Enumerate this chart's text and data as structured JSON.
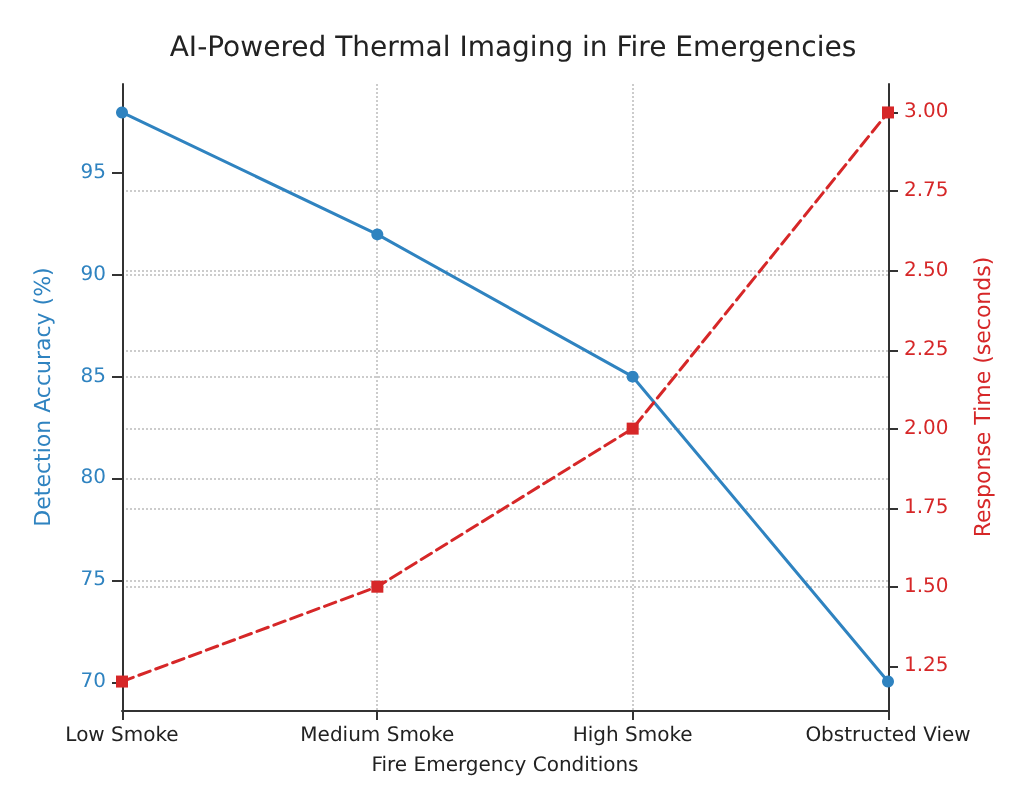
{
  "chart_data": {
    "type": "line",
    "title": "AI-Powered Thermal Imaging in Fire Emergencies",
    "xlabel": "Fire Emergency Conditions",
    "ylabel": "Detection Accuracy (%)",
    "y2label": "Response Time (seconds)",
    "categories": [
      "Low Smoke",
      "Medium Smoke",
      "High Smoke",
      "Obstructed View"
    ],
    "series": [
      {
        "color": "#2f83c0",
        "values": [
          98,
          92,
          85,
          70
        ],
        "marker": "circle",
        "line_style": "solid"
      },
      {
        "color": "#d62728",
        "values": [
          1.2,
          1.5,
          2.0,
          3.0
        ],
        "marker": "square",
        "line_style": "dashed",
        "axis": "y2"
      }
    ],
    "ylim": [
      68.6,
      99.4
    ],
    "yticks": [
      70,
      75,
      80,
      85,
      90,
      95
    ],
    "y2lim": [
      1.11,
      3.09
    ],
    "y2ticks": [
      1.25,
      {
        "value": 1.5,
        "label": "1.50"
      },
      1.75,
      {
        "value": 2,
        "label": "2.00"
      },
      2.25,
      {
        "value": 2.5,
        "label": "2.50"
      },
      2.75,
      {
        "value": 3,
        "label": "3.00"
      }
    ],
    "grid": true
  }
}
